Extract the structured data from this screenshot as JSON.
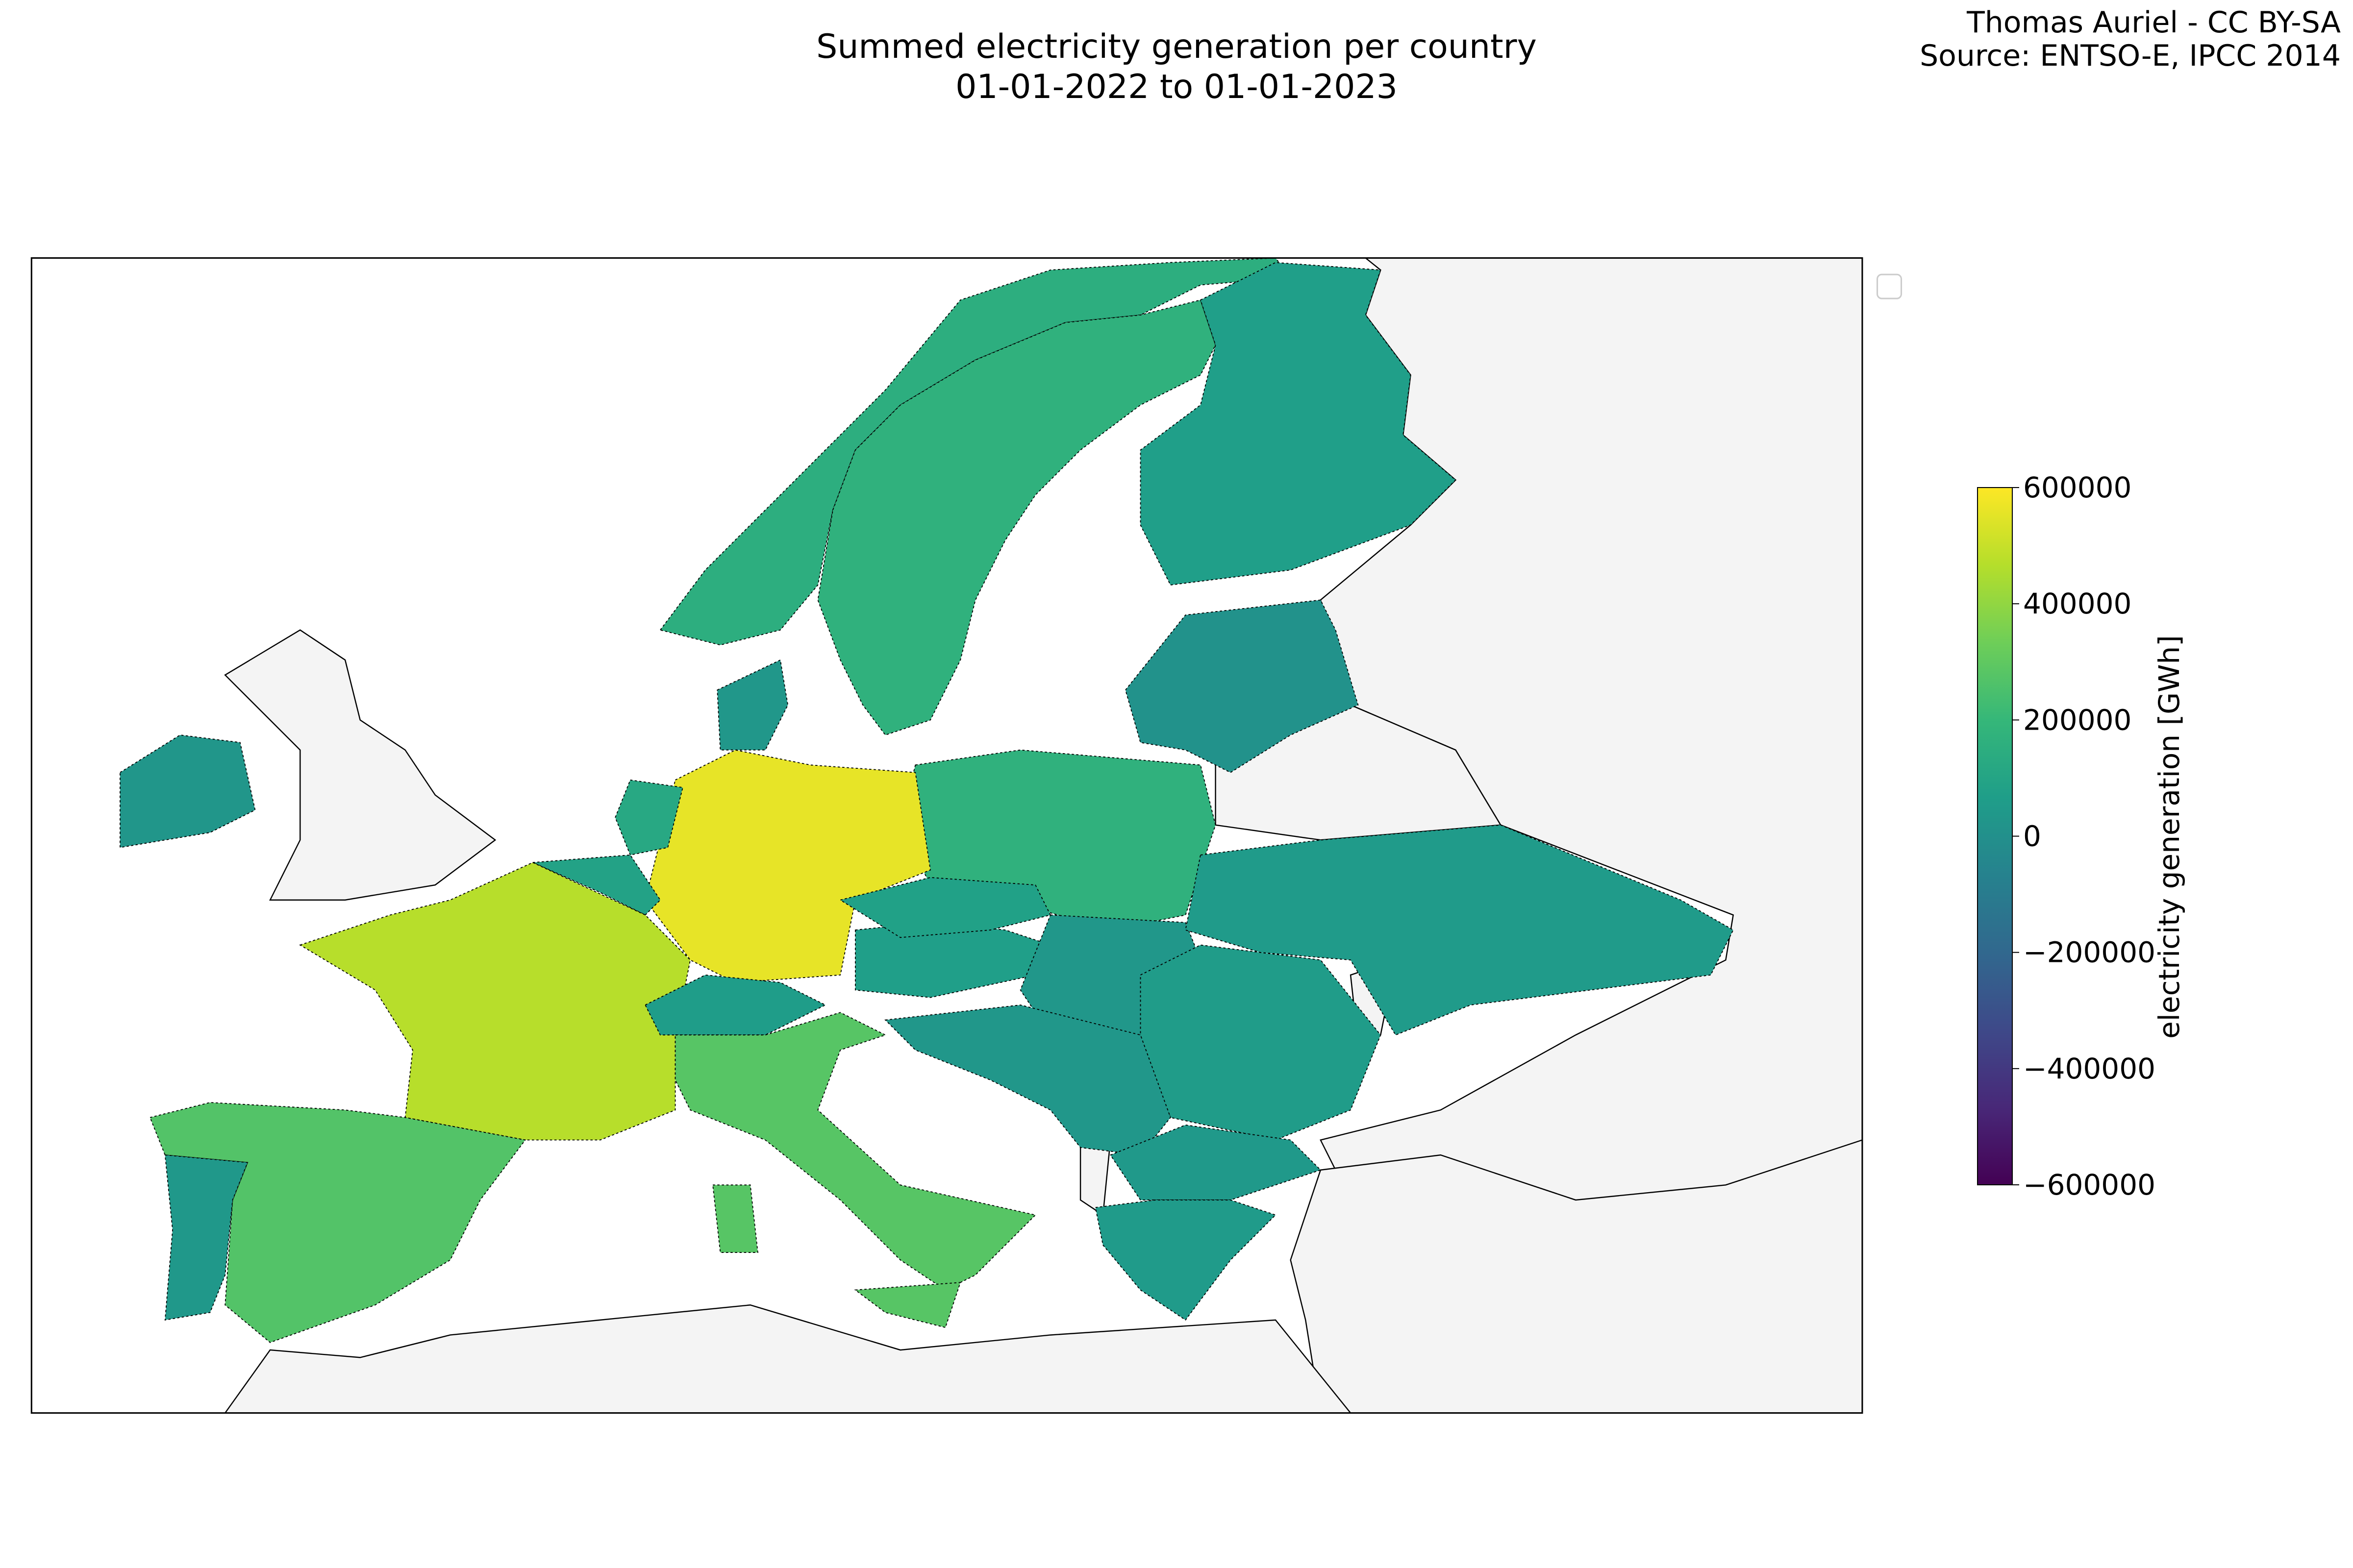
{
  "chart_data": {
    "type": "choropleth",
    "title": "Summed electricity generation per country",
    "subtitle": "01-01-2022 to 01-01-2023",
    "credit": "Thomas Auriel - CC BY-SA",
    "source": "Source: ENTSO-E, IPCC 2014",
    "colorbar_label": "electricity generation [GWh]",
    "colormap": "viridis",
    "clim": [
      -600000,
      600000
    ],
    "cticks": [
      {
        "value": -600000,
        "label": "−600000"
      },
      {
        "value": -400000,
        "label": "−400000"
      },
      {
        "value": -200000,
        "label": "−200000"
      },
      0,
      200000,
      400000,
      600000
    ],
    "values": [
      150000,
      170000,
      70000,
      35000,
      10000,
      170000,
      560000,
      120000,
      90000,
      470000,
      270000,
      40000,
      30000,
      60000,
      280000,
      280000,
      280000,
      70000,
      80000,
      35000,
      55000,
      50000,
      35000,
      45000,
      50000
    ]
  }
}
